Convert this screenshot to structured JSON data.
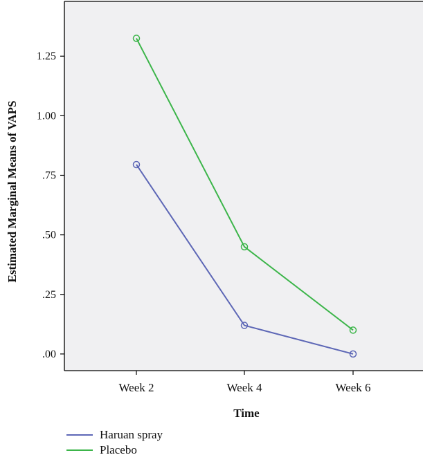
{
  "chart_data": {
    "type": "line",
    "title": "",
    "xlabel": "Time",
    "ylabel": "Estimated Marginal Means of VAPS",
    "categories": [
      "Week 2",
      "Week 4",
      "Week 6"
    ],
    "ylim": [
      -0.07,
      1.48
    ],
    "yticks": [
      0.0,
      0.25,
      0.5,
      0.75,
      1.0,
      1.25
    ],
    "ytick_labels": [
      ".00",
      ".25",
      ".50",
      ".75",
      "1.00",
      "1.25"
    ],
    "grid": false,
    "legend_position": "bottom-left",
    "series": [
      {
        "name": "Haruan spray",
        "color": "#5d67b6",
        "values": [
          0.795,
          0.12,
          0.0
        ]
      },
      {
        "name": "Placebo",
        "color": "#3cb54a",
        "values": [
          1.325,
          0.45,
          0.1
        ]
      }
    ]
  },
  "colors": {
    "plot_background": "#f0f0f2",
    "axis": "#000000"
  }
}
